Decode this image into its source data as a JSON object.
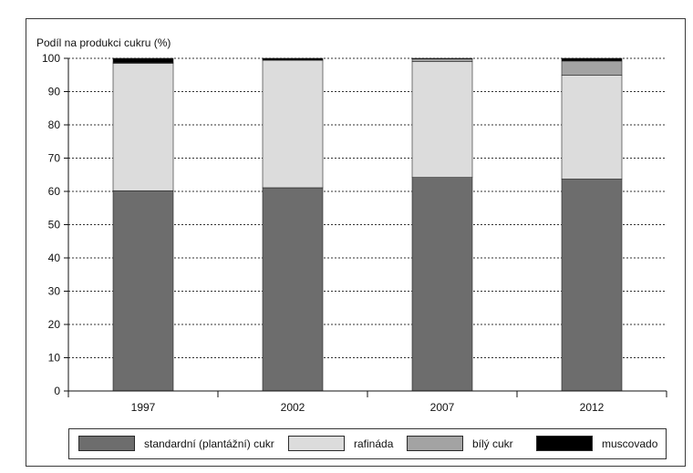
{
  "chart_data": {
    "type": "bar",
    "stacked": true,
    "ylabel": "Podíl na produkci cukru (%)",
    "ylim": [
      0,
      100
    ],
    "yticks": [
      0,
      10,
      20,
      30,
      40,
      50,
      60,
      70,
      80,
      90,
      100
    ],
    "grid": true,
    "categories": [
      "1997",
      "2002",
      "2007",
      "2012"
    ],
    "series": [
      {
        "name": "standardní (plantážní) cukr",
        "color": "#6d6d6d",
        "values": [
          60.2,
          61.1,
          64.2,
          63.7
        ]
      },
      {
        "name": "rafináda",
        "color": "#dcdcdc",
        "values": [
          38.3,
          38.3,
          34.8,
          31.2
        ]
      },
      {
        "name": "bílý cukr",
        "color": "#a3a3a3",
        "values": [
          0.2,
          0.1,
          0.8,
          4.3
        ]
      },
      {
        "name": "muscovado",
        "color": "#000000",
        "values": [
          1.3,
          0.5,
          0.2,
          0.8
        ]
      }
    ],
    "legend_position": "bottom"
  }
}
